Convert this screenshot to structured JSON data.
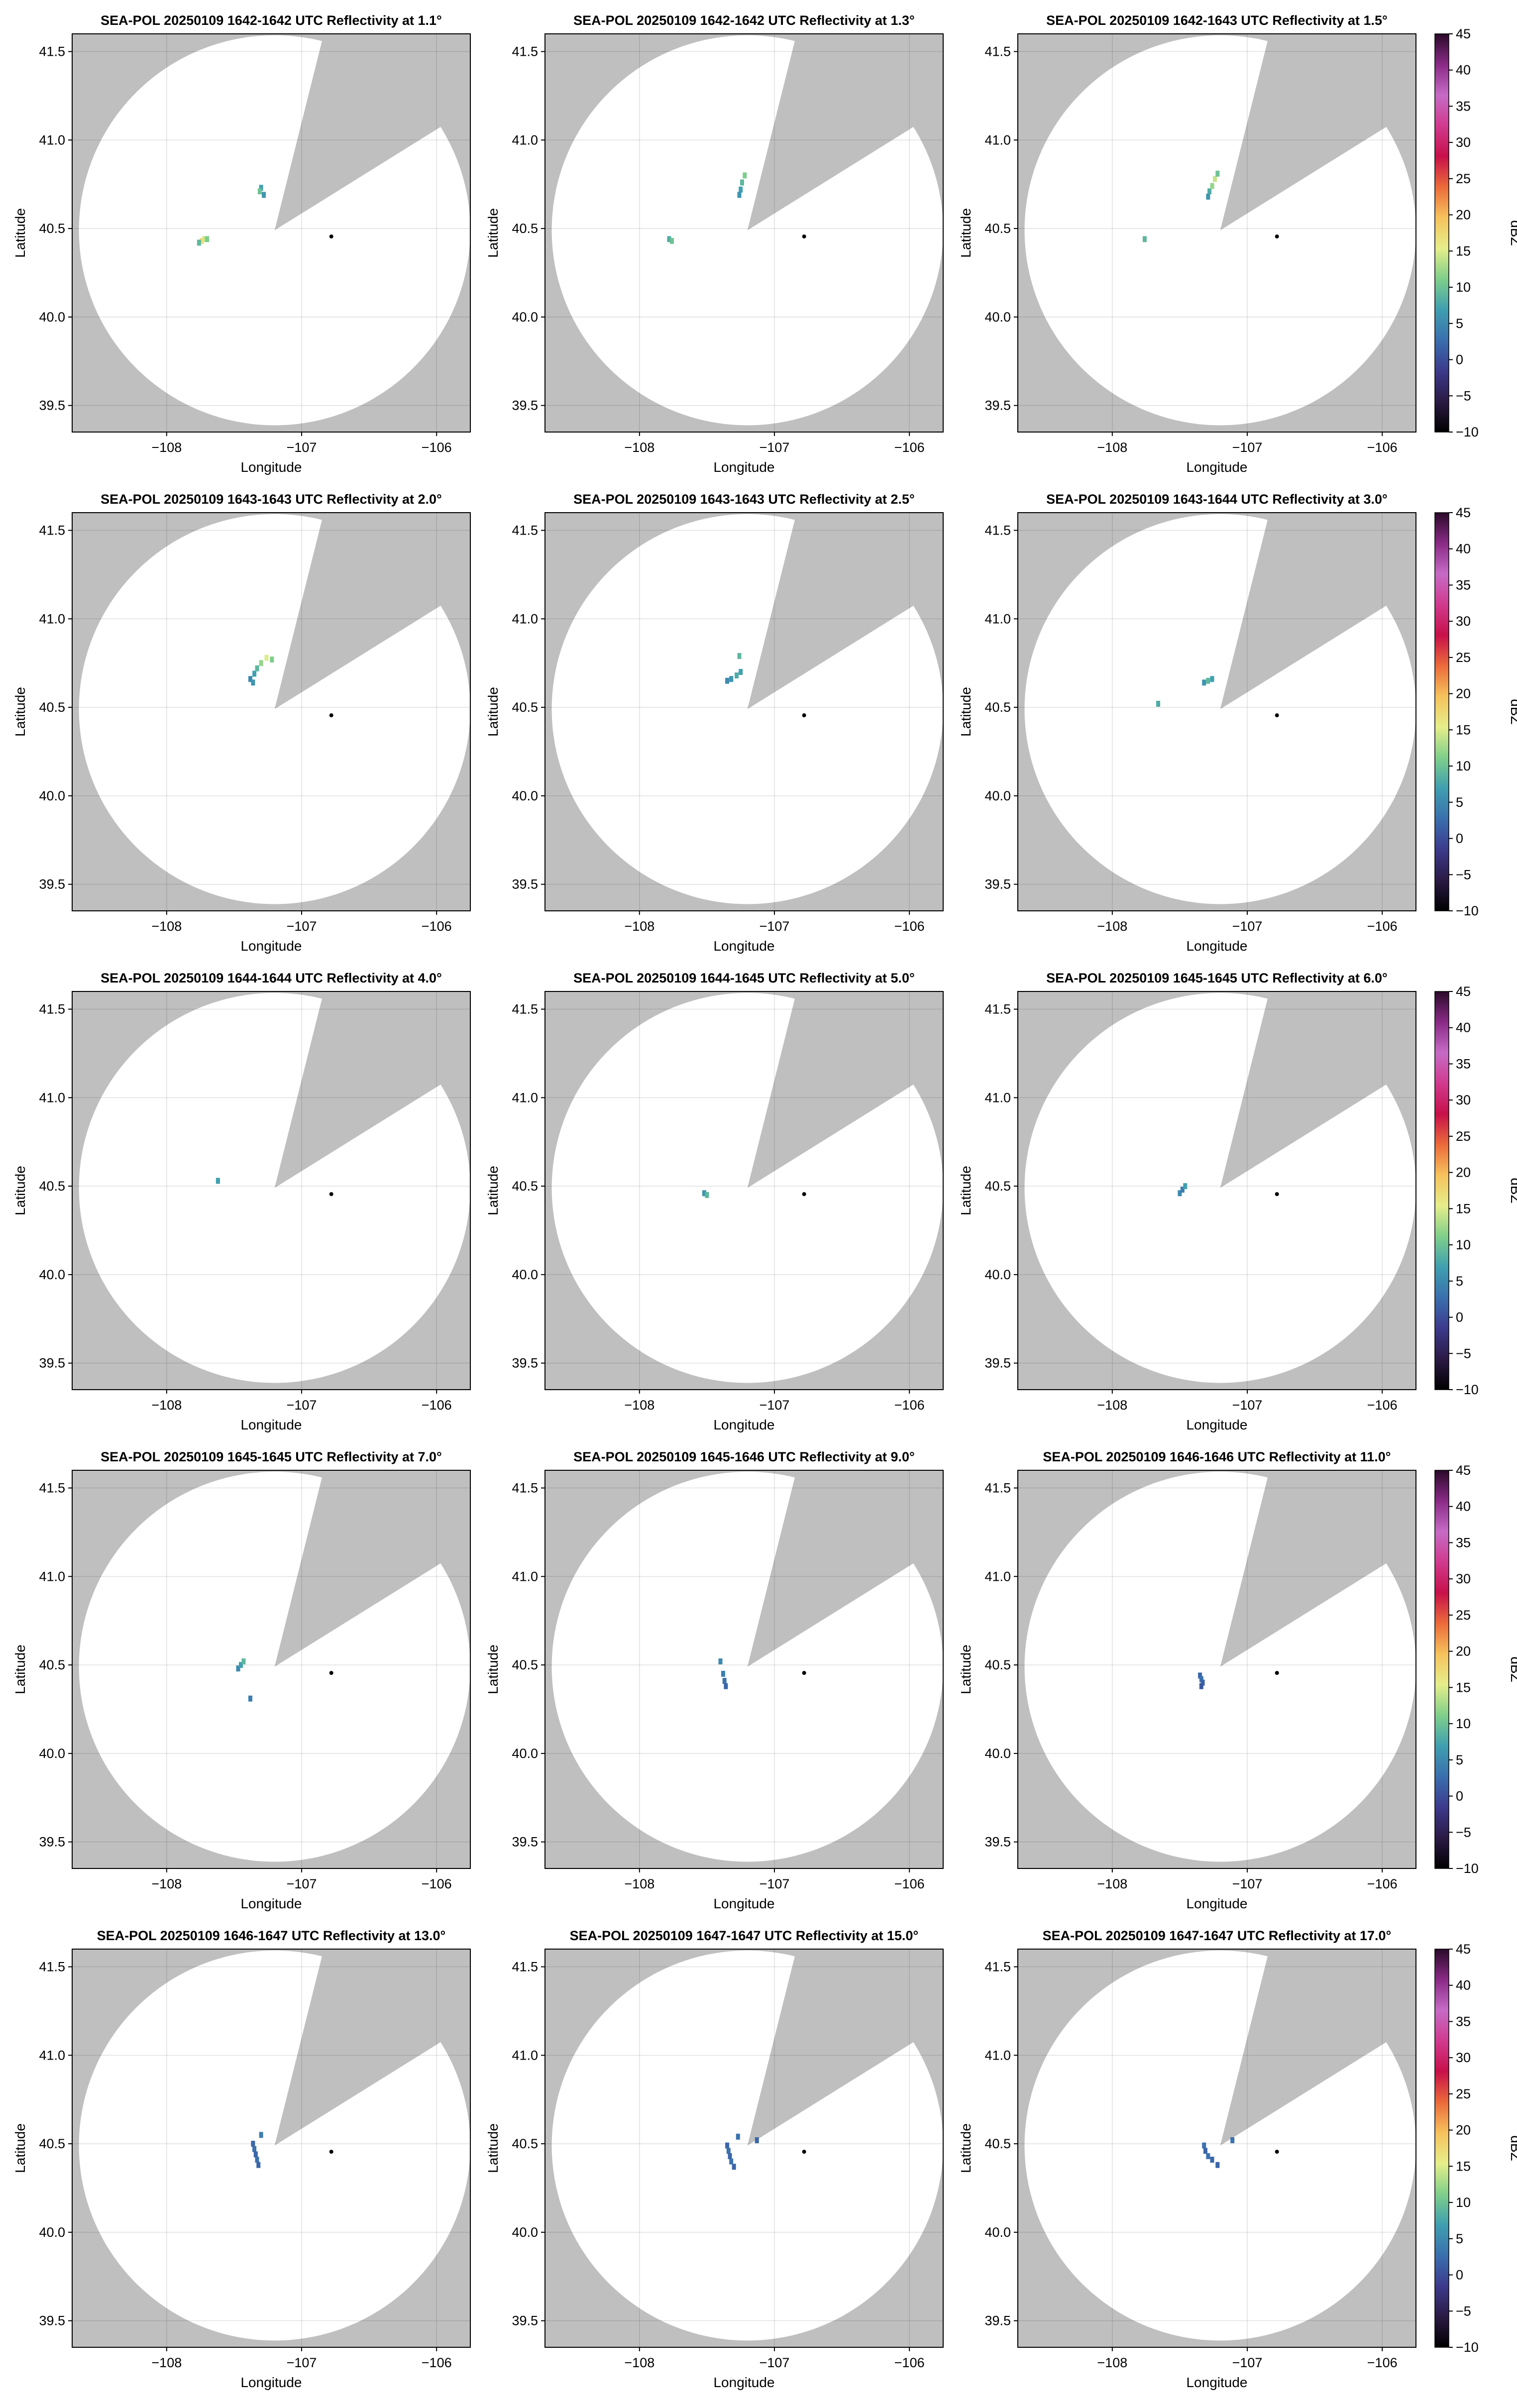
{
  "chart_data": {
    "type": "scatter",
    "panels": [
      {
        "title": "SEA-POL 20250109 1642-1642 UTC Reflectivity at 1.1°",
        "echoes": [
          {
            "lon": -107.72,
            "lat": 40.44,
            "dbz": 14
          },
          {
            "lon": -107.74,
            "lat": 40.43,
            "dbz": 17
          },
          {
            "lon": -107.7,
            "lat": 40.44,
            "dbz": 11
          },
          {
            "lon": -107.76,
            "lat": 40.42,
            "dbz": 9
          },
          {
            "lon": -107.3,
            "lat": 40.73,
            "dbz": 7
          },
          {
            "lon": -107.31,
            "lat": 40.71,
            "dbz": 10
          },
          {
            "lon": -107.28,
            "lat": 40.69,
            "dbz": 6
          }
        ]
      },
      {
        "title": "SEA-POL 20250109 1642-1642 UTC Reflectivity at 1.3°",
        "echoes": [
          {
            "lon": -107.78,
            "lat": 40.44,
            "dbz": 8
          },
          {
            "lon": -107.76,
            "lat": 40.43,
            "dbz": 10
          },
          {
            "lon": -107.25,
            "lat": 40.72,
            "dbz": 7
          },
          {
            "lon": -107.24,
            "lat": 40.76,
            "dbz": 9
          },
          {
            "lon": -107.22,
            "lat": 40.8,
            "dbz": 11
          },
          {
            "lon": -107.26,
            "lat": 40.69,
            "dbz": 6
          }
        ]
      },
      {
        "title": "SEA-POL 20250109 1642-1643 UTC Reflectivity at 1.5°",
        "echoes": [
          {
            "lon": -107.76,
            "lat": 40.44,
            "dbz": 9
          },
          {
            "lon": -107.28,
            "lat": 40.71,
            "dbz": 8
          },
          {
            "lon": -107.26,
            "lat": 40.74,
            "dbz": 12
          },
          {
            "lon": -107.24,
            "lat": 40.78,
            "dbz": 14
          },
          {
            "lon": -107.22,
            "lat": 40.81,
            "dbz": 10
          },
          {
            "lon": -107.29,
            "lat": 40.68,
            "dbz": 6
          }
        ]
      },
      {
        "title": "SEA-POL 20250109 1643-1643 UTC Reflectivity at 2.0°",
        "echoes": [
          {
            "lon": -107.38,
            "lat": 40.66,
            "dbz": 5
          },
          {
            "lon": -107.35,
            "lat": 40.69,
            "dbz": 7
          },
          {
            "lon": -107.33,
            "lat": 40.72,
            "dbz": 9
          },
          {
            "lon": -107.3,
            "lat": 40.75,
            "dbz": 12
          },
          {
            "lon": -107.26,
            "lat": 40.78,
            "dbz": 15
          },
          {
            "lon": -107.22,
            "lat": 40.77,
            "dbz": 11
          },
          {
            "lon": -107.36,
            "lat": 40.64,
            "dbz": 6
          }
        ]
      },
      {
        "title": "SEA-POL 20250109 1643-1643 UTC Reflectivity at 2.5°",
        "echoes": [
          {
            "lon": -107.35,
            "lat": 40.65,
            "dbz": 5
          },
          {
            "lon": -107.32,
            "lat": 40.66,
            "dbz": 6
          },
          {
            "lon": -107.28,
            "lat": 40.68,
            "dbz": 8
          },
          {
            "lon": -107.25,
            "lat": 40.7,
            "dbz": 7
          },
          {
            "lon": -107.26,
            "lat": 40.79,
            "dbz": 9
          }
        ]
      },
      {
        "title": "SEA-POL 20250109 1643-1644 UTC Reflectivity at 3.0°",
        "echoes": [
          {
            "lon": -107.66,
            "lat": 40.52,
            "dbz": 8
          },
          {
            "lon": -107.32,
            "lat": 40.64,
            "dbz": 6
          },
          {
            "lon": -107.29,
            "lat": 40.65,
            "dbz": 9
          },
          {
            "lon": -107.26,
            "lat": 40.66,
            "dbz": 7
          }
        ]
      },
      {
        "title": "SEA-POL 20250109 1644-1644 UTC Reflectivity at 4.0°",
        "echoes": [
          {
            "lon": -107.62,
            "lat": 40.53,
            "dbz": 7
          }
        ]
      },
      {
        "title": "SEA-POL 20250109 1644-1645 UTC Reflectivity at 5.0°",
        "echoes": [
          {
            "lon": -107.52,
            "lat": 40.46,
            "dbz": 6
          },
          {
            "lon": -107.5,
            "lat": 40.45,
            "dbz": 9
          }
        ]
      },
      {
        "title": "SEA-POL 20250109 1645-1645 UTC Reflectivity at 6.0°",
        "echoes": [
          {
            "lon": -107.5,
            "lat": 40.46,
            "dbz": 5
          },
          {
            "lon": -107.48,
            "lat": 40.48,
            "dbz": 4
          },
          {
            "lon": -107.46,
            "lat": 40.5,
            "dbz": 7
          }
        ]
      },
      {
        "title": "SEA-POL 20250109 1645-1645 UTC Reflectivity at 7.0°",
        "echoes": [
          {
            "lon": -107.47,
            "lat": 40.48,
            "dbz": 5
          },
          {
            "lon": -107.45,
            "lat": 40.5,
            "dbz": 7
          },
          {
            "lon": -107.43,
            "lat": 40.52,
            "dbz": 9
          },
          {
            "lon": -107.38,
            "lat": 40.31,
            "dbz": 4
          }
        ]
      },
      {
        "title": "SEA-POL 20250109 1645-1646 UTC Reflectivity at 9.0°",
        "echoes": [
          {
            "lon": -107.38,
            "lat": 40.45,
            "dbz": 4
          },
          {
            "lon": -107.37,
            "lat": 40.41,
            "dbz": 3
          },
          {
            "lon": -107.36,
            "lat": 40.38,
            "dbz": 2
          },
          {
            "lon": -107.4,
            "lat": 40.52,
            "dbz": 5
          }
        ]
      },
      {
        "title": "SEA-POL 20250109 1646-1646 UTC Reflectivity at 11.0°",
        "echoes": [
          {
            "lon": -107.35,
            "lat": 40.44,
            "dbz": 2
          },
          {
            "lon": -107.34,
            "lat": 40.42,
            "dbz": 3
          },
          {
            "lon": -107.33,
            "lat": 40.4,
            "dbz": 2
          },
          {
            "lon": -107.34,
            "lat": 40.38,
            "dbz": 1
          }
        ]
      },
      {
        "title": "SEA-POL 20250109 1646-1647 UTC Reflectivity at 13.0°",
        "echoes": [
          {
            "lon": -107.36,
            "lat": 40.5,
            "dbz": 2
          },
          {
            "lon": -107.35,
            "lat": 40.47,
            "dbz": 3
          },
          {
            "lon": -107.34,
            "lat": 40.44,
            "dbz": 2
          },
          {
            "lon": -107.33,
            "lat": 40.41,
            "dbz": 3
          },
          {
            "lon": -107.32,
            "lat": 40.38,
            "dbz": 2
          },
          {
            "lon": -107.3,
            "lat": 40.55,
            "dbz": 4
          }
        ]
      },
      {
        "title": "SEA-POL 20250109 1647-1647 UTC Reflectivity at 15.0°",
        "echoes": [
          {
            "lon": -107.35,
            "lat": 40.49,
            "dbz": 2
          },
          {
            "lon": -107.34,
            "lat": 40.46,
            "dbz": 3
          },
          {
            "lon": -107.33,
            "lat": 40.43,
            "dbz": 2
          },
          {
            "lon": -107.32,
            "lat": 40.4,
            "dbz": 3
          },
          {
            "lon": -107.3,
            "lat": 40.37,
            "dbz": 2
          },
          {
            "lon": -107.27,
            "lat": 40.54,
            "dbz": 3
          },
          {
            "lon": -107.13,
            "lat": 40.52,
            "dbz": 2
          }
        ]
      },
      {
        "title": "SEA-POL 20250109 1647-1647 UTC Reflectivity at 17.0°",
        "echoes": [
          {
            "lon": -107.32,
            "lat": 40.49,
            "dbz": 3
          },
          {
            "lon": -107.31,
            "lat": 40.46,
            "dbz": 2
          },
          {
            "lon": -107.29,
            "lat": 40.43,
            "dbz": 3
          },
          {
            "lon": -107.26,
            "lat": 40.41,
            "dbz": 2
          },
          {
            "lon": -107.22,
            "lat": 40.38,
            "dbz": 2
          },
          {
            "lon": -107.11,
            "lat": 40.52,
            "dbz": 3
          }
        ]
      }
    ],
    "xlabel": "Longitude",
    "ylabel": "Latitude",
    "xlim": [
      -108.7,
      -105.75
    ],
    "ylim": [
      39.35,
      41.6
    ],
    "xticks": [
      -108,
      -107,
      -106
    ],
    "xtick_labels": [
      "−108",
      "−107",
      "−106"
    ],
    "yticks": [
      39.5,
      40.0,
      40.5,
      41.0,
      41.5
    ],
    "ytick_labels": [
      "39.5",
      "40.0",
      "40.5",
      "41.0",
      "41.5"
    ],
    "grid": true,
    "colorbar": {
      "label": "dBZ",
      "range": [
        -10,
        45
      ],
      "ticks": [
        -10,
        -5,
        0,
        5,
        10,
        15,
        20,
        25,
        30,
        35,
        40,
        45
      ],
      "tick_labels": [
        "−10",
        "−5",
        "0",
        "5",
        "10",
        "15",
        "20",
        "25",
        "30",
        "35",
        "40",
        "45"
      ],
      "colors": [
        "#000000",
        "#2b1a45",
        "#3c3a8c",
        "#3a6fae",
        "#3f9fb0",
        "#7fcf8a",
        "#e6ee8a",
        "#f6c25c",
        "#ec6a3a",
        "#c8104a",
        "#d13a8f",
        "#c66bc6",
        "#8a2a86",
        "#2a0a2a"
      ]
    },
    "radar": {
      "lon": -107.2,
      "lat": 40.49,
      "range_deg": 1.45,
      "blocked_sector_deg": [
        14,
        58
      ]
    },
    "marker": {
      "lon": -106.78,
      "lat": 40.455
    },
    "background_color": "#bfbfbf",
    "coverage_color": "#ffffff"
  }
}
